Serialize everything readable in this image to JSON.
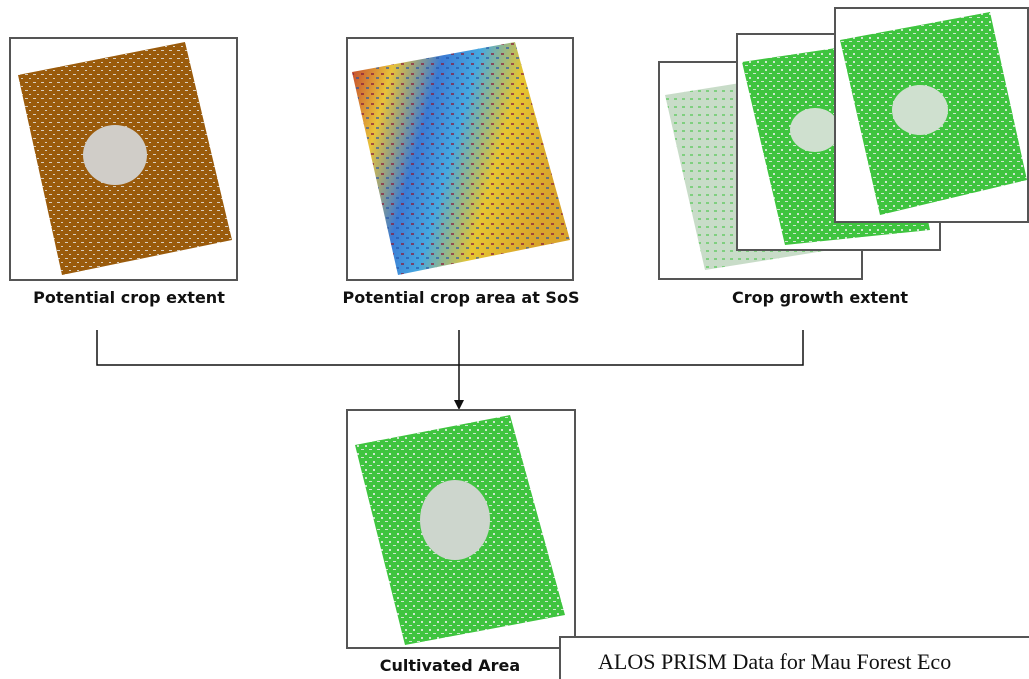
{
  "nodes": [
    {
      "label": "Potential crop extent"
    },
    {
      "label": "Potential crop area at SoS"
    },
    {
      "label": "Crop growth extent"
    },
    {
      "label": "Cultivated Area"
    }
  ],
  "caption": "ALOS PRISM Data for Mau Forest Eco"
}
